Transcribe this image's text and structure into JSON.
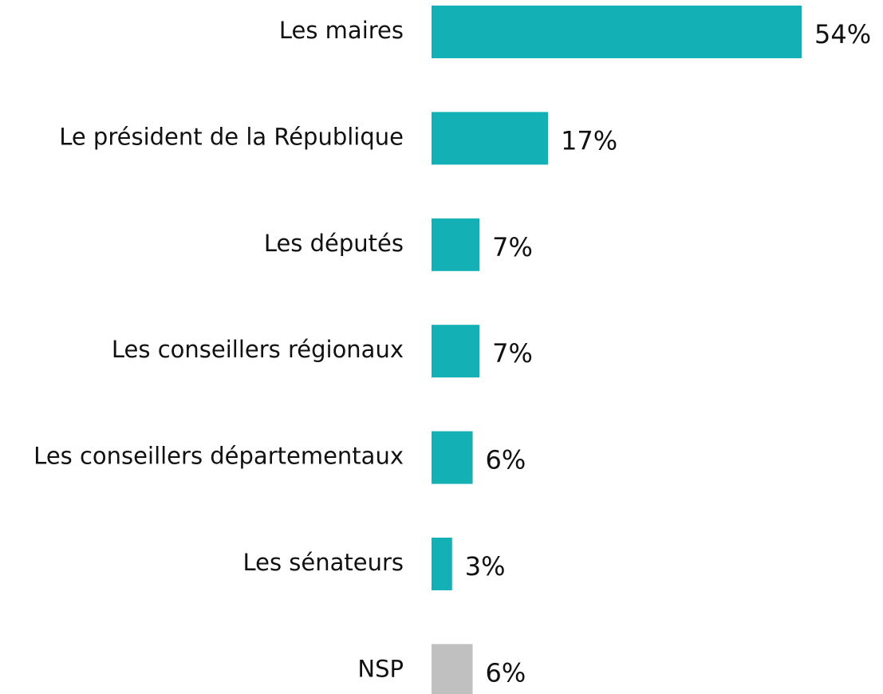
{
  "chart_data": {
    "type": "hbar",
    "categories": [
      "Les maires",
      "Le président de la République",
      "Les députés",
      "Les conseillers régionaux",
      "Les conseillers départementaux",
      "Les sénateurs",
      "NSP"
    ],
    "values": [
      54,
      17,
      7,
      7,
      6,
      3,
      6
    ],
    "value_labels": [
      "54%",
      "17%",
      "7%",
      "7%",
      "6%",
      "3%",
      "6%"
    ],
    "colors": [
      "#13b0b6",
      "#13b0b6",
      "#13b0b6",
      "#13b0b6",
      "#13b0b6",
      "#13b0b6",
      "#c0c0c0"
    ]
  }
}
